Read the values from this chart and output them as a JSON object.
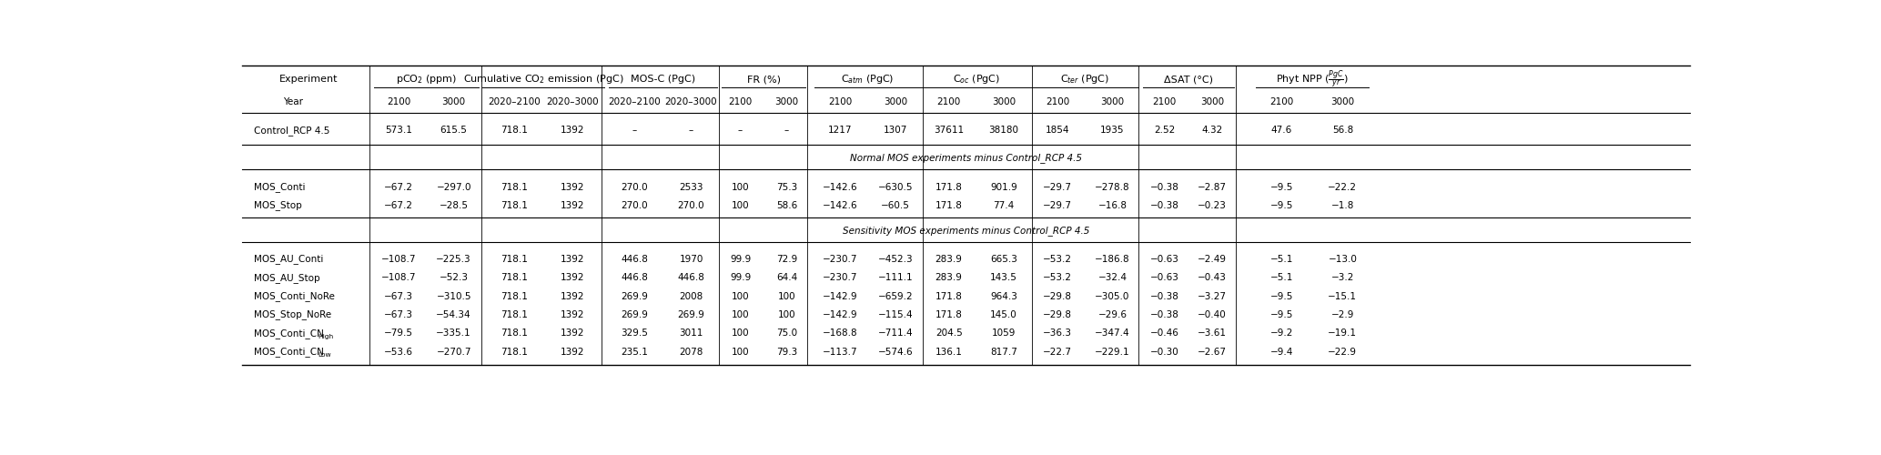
{
  "figsize": [
    20.67,
    5.0
  ],
  "dpi": 100,
  "bg_color": "#ffffff",
  "font_size": 7.5,
  "header_font_size": 8.0,
  "rows": [
    {
      "type": "data",
      "name": "Control_RCP 4.5",
      "values": [
        "573.1",
        "615.5",
        "718.1",
        "1392",
        "–",
        "–",
        "–",
        "–",
        "1217",
        "1307",
        "37611",
        "38180",
        "1854",
        "1935",
        "2.52",
        "4.32",
        "47.6",
        "56.8"
      ]
    },
    {
      "type": "section",
      "label": "Normal MOS experiments minus Control_RCP 4.5"
    },
    {
      "type": "data",
      "name": "MOS_Conti",
      "values": [
        "−67.2",
        "−297.0",
        "718.1",
        "1392",
        "270.0",
        "2533",
        "100",
        "75.3",
        "−142.6",
        "−630.5",
        "171.8",
        "901.9",
        "−29.7",
        "−278.8",
        "−0.38",
        "−2.87",
        "−9.5",
        "−22.2"
      ]
    },
    {
      "type": "data",
      "name": "MOS_Stop",
      "values": [
        "−67.2",
        "−28.5",
        "718.1",
        "1392",
        "270.0",
        "270.0",
        "100",
        "58.6",
        "−142.6",
        "−60.5",
        "171.8",
        "77.4",
        "−29.7",
        "−16.8",
        "−0.38",
        "−0.23",
        "−9.5",
        "−1.8"
      ]
    },
    {
      "type": "section",
      "label": "Sensitivity MOS experiments minus Control_RCP 4.5"
    },
    {
      "type": "data",
      "name": "MOS_AU_Conti",
      "values": [
        "−108.7",
        "−225.3",
        "718.1",
        "1392",
        "446.8",
        "1970",
        "99.9",
        "72.9",
        "−230.7",
        "−452.3",
        "283.9",
        "665.3",
        "−53.2",
        "−186.8",
        "−0.63",
        "−2.49",
        "−5.1",
        "−13.0"
      ]
    },
    {
      "type": "data",
      "name": "MOS_AU_Stop",
      "values": [
        "−108.7",
        "−52.3",
        "718.1",
        "1392",
        "446.8",
        "446.8",
        "99.9",
        "64.4",
        "−230.7",
        "−111.1",
        "283.9",
        "143.5",
        "−53.2",
        "−32.4",
        "−0.63",
        "−0.43",
        "−5.1",
        "−3.2"
      ]
    },
    {
      "type": "data",
      "name": "MOS_Conti_NoRe",
      "values": [
        "−67.3",
        "−310.5",
        "718.1",
        "1392",
        "269.9",
        "2008",
        "100",
        "100",
        "−142.9",
        "−659.2",
        "171.8",
        "964.3",
        "−29.8",
        "−305.0",
        "−0.38",
        "−3.27",
        "−9.5",
        "−15.1"
      ]
    },
    {
      "type": "data",
      "name": "MOS_Stop_NoRe",
      "values": [
        "−67.3",
        "−54.34",
        "718.1",
        "1392",
        "269.9",
        "269.9",
        "100",
        "100",
        "−142.9",
        "−115.4",
        "171.8",
        "145.0",
        "−29.8",
        "−29.6",
        "−0.38",
        "−0.40",
        "−9.5",
        "−2.9"
      ]
    },
    {
      "type": "data",
      "name": "MOS_Conti_CN",
      "name_sub": "High",
      "values": [
        "−79.5",
        "−335.1",
        "718.1",
        "1392",
        "329.5",
        "3011",
        "100",
        "75.0",
        "−168.8",
        "−711.4",
        "204.5",
        "1059",
        "−36.3",
        "−347.4",
        "−0.46",
        "−3.61",
        "−9.2",
        "−19.1"
      ]
    },
    {
      "type": "data",
      "name": "MOS_Conti_CN",
      "name_sub": "Low",
      "values": [
        "−53.6",
        "−270.7",
        "718.1",
        "1392",
        "235.1",
        "2078",
        "100",
        "79.3",
        "−113.7",
        "−574.6",
        "136.1",
        "817.7",
        "−22.7",
        "−229.1",
        "−0.30",
        "−2.67",
        "−9.4",
        "−22.9"
      ]
    }
  ],
  "year_labels": [
    "2100",
    "3000",
    "2020–2100",
    "2020–3000",
    "2020–2100",
    "2020–3000",
    "2100",
    "3000",
    "2100",
    "3000",
    "2100",
    "3000",
    "2100",
    "3000",
    "2100",
    "3000",
    "2100",
    "3000"
  ],
  "group_labels": [
    "pCO$_2$ (ppm)",
    "Cumulative CO$_2$ emission (PgC)",
    "MOS-C (PgC)",
    "FR (%)",
    "C$_{atm}$ (PgC)",
    "C$_{oc}$ (PgC)",
    "C$_{ter}$ (PgC)",
    "ΔSAT (°C)",
    "Phyt NPP ($\\frac{PgC}{yr}$)"
  ]
}
